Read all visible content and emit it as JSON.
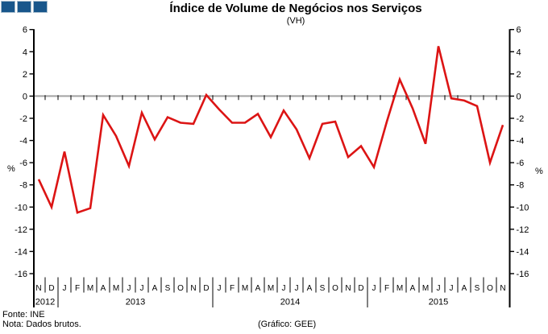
{
  "logo": {
    "square_color": "#18568B"
  },
  "title": "Índice de Volume de Negócios nos Serviços",
  "subtitle": "(VH)",
  "footer": {
    "source": "Fonte: INE",
    "note": "Nota: Dados brutos.",
    "credit": "(Gráfico: GEE)"
  },
  "chart_data": {
    "type": "line",
    "title": "Índice de Volume de Negócios nos Serviços",
    "subtitle": "(VH)",
    "ylabel_left": "%",
    "ylabel_right": "%",
    "ylim": [
      -16,
      6
    ],
    "ytick_step": 2,
    "line_color": "#DC1414",
    "categories": [
      "N",
      "D",
      "J",
      "F",
      "M",
      "A",
      "M",
      "J",
      "J",
      "A",
      "S",
      "O",
      "N",
      "D",
      "J",
      "F",
      "M",
      "A",
      "M",
      "J",
      "J",
      "A",
      "S",
      "O",
      "N",
      "D",
      "J",
      "F",
      "M",
      "A",
      "M",
      "J",
      "J",
      "A",
      "S",
      "O",
      "N"
    ],
    "year_groups": [
      {
        "label": "2012",
        "count": 2
      },
      {
        "label": "2013",
        "count": 12
      },
      {
        "label": "2014",
        "count": 12
      },
      {
        "label": "2015",
        "count": 11
      }
    ],
    "values": [
      -7.5,
      -10.0,
      -5.0,
      -10.5,
      -10.1,
      -1.7,
      -3.6,
      -6.3,
      -1.5,
      -3.9,
      -1.9,
      -2.4,
      -2.5,
      0.1,
      -1.2,
      -2.4,
      -2.4,
      -1.6,
      -3.7,
      -1.3,
      -3.0,
      -5.6,
      -2.5,
      -2.3,
      -5.5,
      -4.5,
      -6.4,
      -2.3,
      1.5,
      -1.1,
      -4.3,
      4.5,
      -0.2,
      -0.4,
      -0.9,
      -6.0,
      -2.6
    ]
  }
}
